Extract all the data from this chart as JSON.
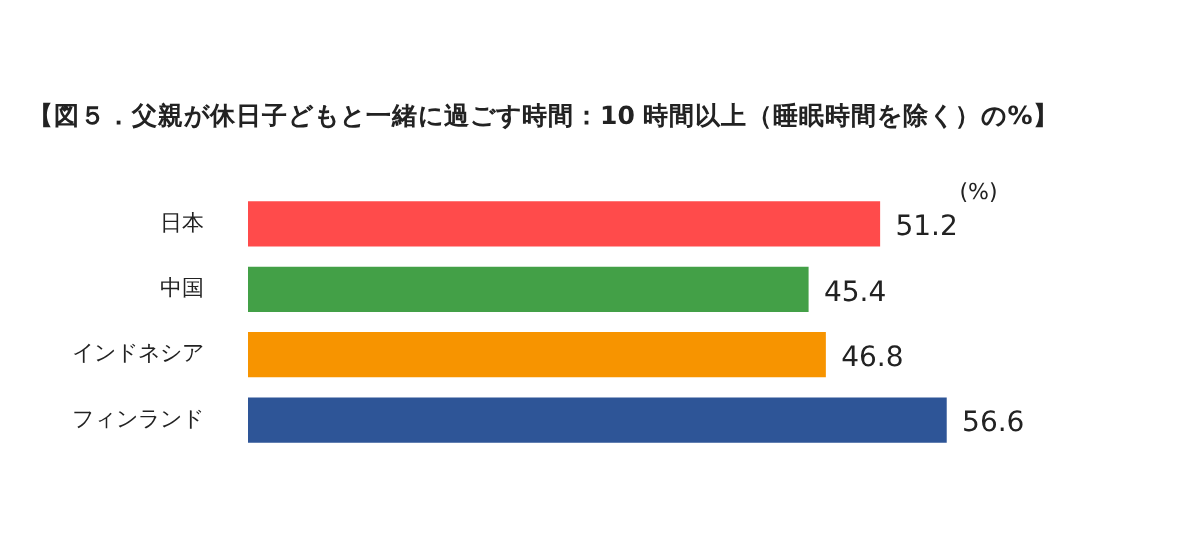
{
  "chart_data": {
    "type": "bar",
    "orientation": "horizontal",
    "title": "【図５．父親が休日子どもと一緒に過ごす時間：10 時間以上（睡眠時間を除く）の%】",
    "categories": [
      "日本",
      "中国",
      "インドネシア",
      "フィンランド"
    ],
    "values": [
      51.2,
      45.4,
      46.8,
      56.6
    ],
    "colors": [
      "#ff4b4b",
      "#43a047",
      "#f79400",
      "#2e5597"
    ],
    "tick_labels": "y",
    "grid": false,
    "legend": false,
    "data_labels": true,
    "annotations": [
      "(%)"
    ]
  }
}
